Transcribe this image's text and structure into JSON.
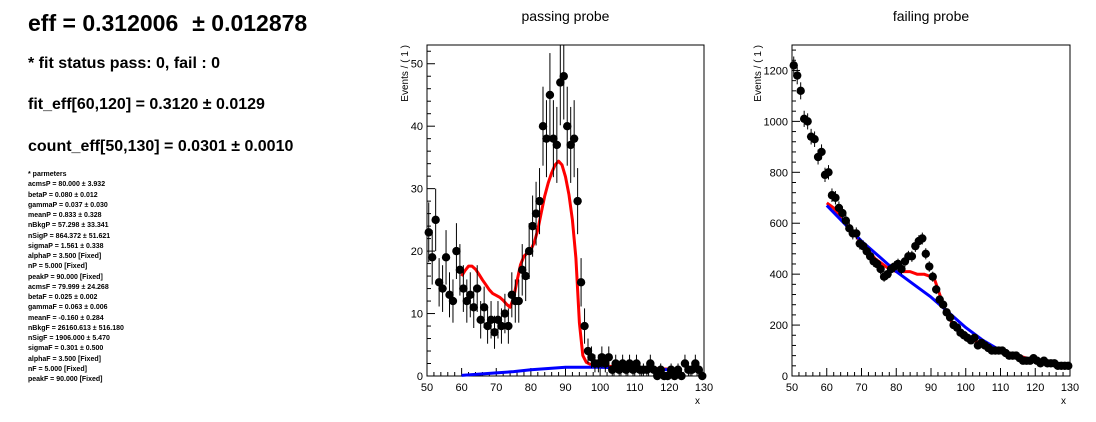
{
  "summary": {
    "eff": "eff = 0.312006",
    "eff_err": "± 0.012878",
    "fit_status": "* fit status pass: 0, fail : 0",
    "fit_eff": "fit_eff[60,120] = 0.3120 ± 0.0129",
    "count_eff": "count_eff[50,130] = 0.0301 ± 0.0010"
  },
  "parameters": {
    "header": "* parmeters",
    "lines": [
      "acmsP = 80.000 ± 3.932",
      "betaP = 0.080 ± 0.012",
      "gammaP = 0.037 ± 0.030",
      "meanP = 0.833 ± 0.328",
      "nBkgP = 57.298 ± 33.341",
      "nSigP = 864.372 ± 51.621",
      "sigmaP = 1.561 ± 0.338",
      "alphaP = 3.500 [Fixed]",
      "nP = 5.000 [Fixed]",
      "peakP = 90.000 [Fixed]",
      "acmsF = 79.999 ± 24.268",
      "betaF = 0.025 ± 0.002",
      "gammaF = 0.063 ± 0.006",
      "meanF = -0.160 ± 0.284",
      "nBkgF = 26160.613 ± 516.180",
      "nSigF = 1906.000 ± 5.470",
      "sigmaF = 0.301 ± 0.500",
      "alphaF = 3.500 [Fixed]",
      "nF = 5.000 [Fixed]",
      "peakF = 90.000 [Fixed]"
    ]
  },
  "chart_data": [
    {
      "type": "scatter",
      "title": "passing probe",
      "xlabel": "x",
      "ylabel": "Events / ( 1 )",
      "xlim": [
        50,
        130
      ],
      "ylim": [
        0,
        53
      ],
      "xticks": [
        50,
        60,
        70,
        80,
        90,
        100,
        110,
        120,
        130
      ],
      "yticks": [
        0,
        10,
        20,
        30,
        40,
        50
      ],
      "grid": false,
      "colors": {
        "points": "#000000",
        "total_fit": "#ff0000",
        "background_fit": "#0000ff"
      },
      "series": [
        {
          "role": "data",
          "x": [
            50.5,
            51.5,
            52.5,
            53.5,
            54.5,
            55.5,
            56.5,
            57.5,
            58.5,
            59.5,
            60.5,
            61.5,
            62.5,
            63.5,
            64.5,
            65.5,
            66.5,
            67.5,
            68.5,
            69.5,
            70.5,
            71.5,
            72.5,
            73.5,
            74.5,
            75.5,
            76.5,
            77.5,
            78.5,
            79.5,
            80.5,
            81.5,
            82.5,
            83.5,
            84.5,
            85.5,
            86.5,
            87.5,
            88.5,
            89.5,
            90.5,
            91.5,
            92.5,
            93.5,
            94.5,
            95.5,
            96.5,
            97.5,
            98.5,
            99.5,
            100.5,
            101.5,
            102.5,
            103.5,
            104.5,
            105.5,
            106.5,
            107.5,
            108.5,
            109.5,
            110.5,
            111.5,
            112.5,
            113.5,
            114.5,
            115.5,
            116.5,
            117.5,
            118.5,
            119.5,
            120.5,
            121.5,
            122.5,
            123.5,
            124.5,
            125.5,
            126.5,
            127.5,
            128.5,
            129.5
          ],
          "y": [
            23,
            19,
            25,
            15,
            14,
            19,
            13,
            12,
            20,
            17,
            14,
            12,
            13,
            11,
            14,
            9,
            11,
            8,
            9,
            7,
            9,
            8,
            10,
            8,
            13,
            12,
            12,
            17,
            16,
            20,
            24,
            26,
            28,
            40,
            38,
            45,
            38,
            37,
            47,
            48,
            40,
            37,
            38,
            28,
            15,
            8,
            4,
            3,
            2,
            2,
            3,
            2,
            3,
            1,
            2,
            1,
            2,
            1,
            2,
            1,
            2,
            1,
            1,
            1,
            2,
            1,
            0,
            1,
            0,
            0,
            1,
            0,
            1,
            0,
            2,
            1,
            1,
            2,
            1,
            0
          ]
        },
        {
          "role": "total_fit",
          "x": [
            60,
            61,
            62,
            63,
            64,
            65,
            66,
            67,
            68,
            69,
            70,
            71,
            72,
            73,
            74,
            75,
            76,
            77,
            78,
            79,
            80,
            81,
            82,
            83,
            84,
            85,
            86,
            87,
            88,
            89,
            90,
            91,
            92,
            93,
            94,
            95,
            96,
            97,
            98,
            100,
            105,
            110,
            115,
            120
          ],
          "y": [
            16.0,
            16.9,
            17.6,
            17.6,
            17.1,
            16.3,
            15.4,
            14.6,
            13.8,
            13.2,
            12.9,
            12.6,
            12.1,
            11.5,
            11.0,
            12.5,
            15.2,
            17.8,
            19.2,
            19.7,
            20.2,
            21.4,
            23.4,
            26.2,
            28.8,
            30.9,
            32.5,
            33.8,
            34.4,
            33.8,
            31.9,
            29.0,
            25.0,
            18.9,
            8.5,
            3.3,
            2.2,
            1.9,
            1.8,
            1.6,
            1.5,
            1.4,
            1.2,
            1.1
          ]
        },
        {
          "role": "background_fit",
          "x": [
            60,
            65,
            70,
            75,
            80,
            85,
            90,
            95,
            100,
            105,
            110,
            115,
            120
          ],
          "y": [
            0.1,
            0.3,
            0.5,
            0.7,
            1.0,
            1.2,
            1.4,
            1.4,
            1.4,
            1.3,
            1.2,
            1.1,
            1.0
          ]
        }
      ]
    },
    {
      "type": "scatter",
      "title": "failing probe",
      "xlabel": "x",
      "ylabel": "Events / ( 1 )",
      "xlim": [
        50,
        130
      ],
      "ylim": [
        0,
        1300
      ],
      "xticks": [
        50,
        60,
        70,
        80,
        90,
        100,
        110,
        120,
        130
      ],
      "yticks": [
        0,
        200,
        400,
        600,
        800,
        1000,
        1200
      ],
      "grid": false,
      "colors": {
        "points": "#000000",
        "total_fit": "#ff0000",
        "background_fit": "#0000ff"
      },
      "series": [
        {
          "role": "data",
          "x": [
            50.5,
            51.5,
            52.5,
            53.5,
            54.5,
            55.5,
            56.5,
            57.5,
            58.5,
            59.5,
            60.5,
            61.5,
            62.5,
            63.5,
            64.5,
            65.5,
            66.5,
            67.5,
            68.5,
            69.5,
            70.5,
            71.5,
            72.5,
            73.5,
            74.5,
            75.5,
            76.5,
            77.5,
            78.5,
            79.5,
            80.5,
            81.5,
            82.5,
            83.5,
            84.5,
            85.5,
            86.5,
            87.5,
            88.5,
            89.5,
            90.5,
            91.5,
            92.5,
            93.5,
            94.5,
            95.5,
            96.5,
            97.5,
            98.5,
            99.5,
            100.5,
            101.5,
            102.5,
            103.5,
            104.5,
            105.5,
            106.5,
            107.5,
            108.5,
            109.5,
            110.5,
            111.5,
            112.5,
            113.5,
            114.5,
            115.5,
            116.5,
            117.5,
            118.5,
            119.5,
            120.5,
            121.5,
            122.5,
            123.5,
            124.5,
            125.5,
            126.5,
            127.5,
            128.5,
            129.5
          ],
          "y": [
            1220,
            1180,
            1120,
            1010,
            1000,
            940,
            930,
            860,
            880,
            790,
            800,
            710,
            700,
            660,
            640,
            610,
            580,
            560,
            560,
            520,
            510,
            490,
            470,
            450,
            440,
            420,
            390,
            400,
            420,
            430,
            440,
            420,
            450,
            470,
            470,
            510,
            530,
            540,
            480,
            430,
            390,
            340,
            300,
            280,
            250,
            230,
            200,
            190,
            170,
            160,
            150,
            140,
            150,
            120,
            130,
            120,
            110,
            100,
            100,
            100,
            100,
            90,
            80,
            80,
            80,
            70,
            60,
            60,
            60,
            70,
            60,
            50,
            60,
            50,
            50,
            50,
            40,
            40,
            40,
            40
          ]
        },
        {
          "role": "total_fit",
          "x": [
            60,
            62,
            64,
            66,
            68,
            70,
            72,
            74,
            76,
            78,
            80,
            82,
            84,
            86,
            88,
            90,
            91,
            92,
            94,
            96,
            100,
            105,
            110,
            115,
            120
          ],
          "y": [
            680,
            660,
            620,
            590,
            560,
            520,
            490,
            460,
            440,
            420,
            410,
            410,
            410,
            400,
            400,
            390,
            380,
            340,
            260,
            210,
            160,
            120,
            100,
            80,
            60
          ]
        },
        {
          "role": "background_fit",
          "x": [
            60,
            65,
            70,
            75,
            80,
            85,
            90,
            95,
            100,
            105,
            110,
            115,
            120
          ],
          "y": [
            670,
            600,
            530,
            470,
            410,
            360,
            310,
            250,
            190,
            140,
            100,
            75,
            60
          ]
        }
      ]
    }
  ]
}
